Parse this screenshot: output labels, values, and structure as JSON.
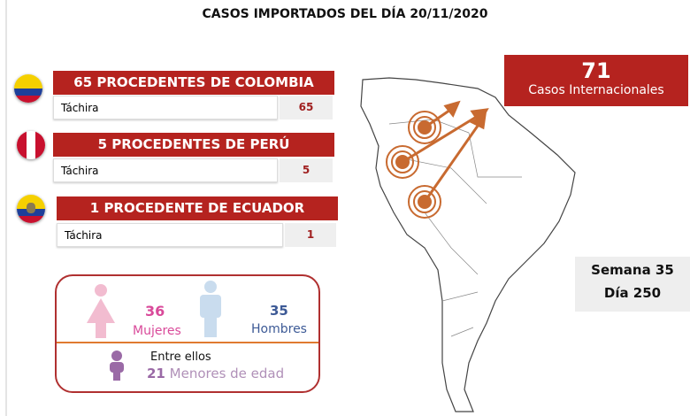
{
  "title": "CASOS IMPORTADOS DEL DÍA  20/11/2020",
  "countries": [
    {
      "header": "65 PROCEDENTES DE COLOMBIA",
      "state": "Táchira",
      "value": "65",
      "flag": "colombia-flag"
    },
    {
      "header": "5 PROCEDENTES DE PERÚ",
      "state": "Táchira",
      "value": "5",
      "flag": "peru-flag"
    },
    {
      "header": "1 PROCEDENTE DE ECUADOR",
      "state": "Táchira",
      "value": "1",
      "flag": "ecuador-flag"
    }
  ],
  "gender": {
    "women_count": "36",
    "women_label": "Mujeres",
    "men_count": "35",
    "men_label": "Hombres",
    "among_label": "Entre ellos",
    "minors_count": "21",
    "minors_label": "Menores de edad"
  },
  "international": {
    "count": "71",
    "label": "Casos Internacionales"
  },
  "week": {
    "semana": "Semana 35",
    "dia": "Día 250"
  },
  "colors": {
    "accent_red": "#b5231f",
    "women": "#d94a9a",
    "men": "#3d5a96",
    "minors": "#9a6aa6",
    "arrow": "#c86a30"
  }
}
